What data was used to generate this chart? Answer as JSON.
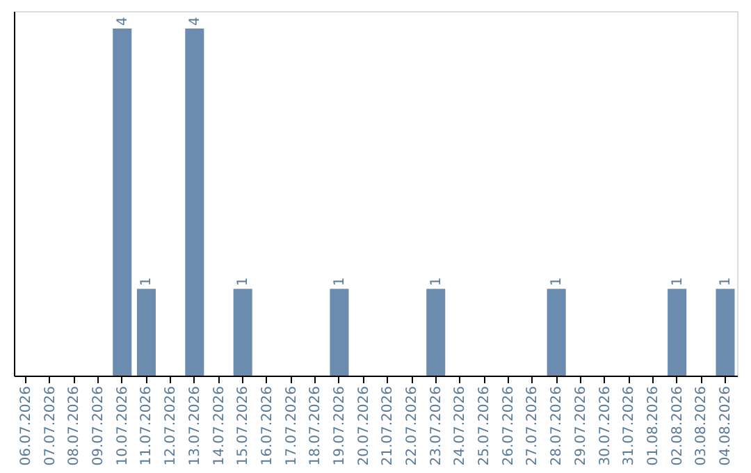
{
  "chart_data": {
    "type": "bar",
    "categories": [
      "06.07.2026",
      "07.07.2026",
      "08.07.2026",
      "09.07.2026",
      "10.07.2026",
      "11.07.2026",
      "12.07.2026",
      "13.07.2026",
      "14.07.2026",
      "15.07.2026",
      "16.07.2026",
      "17.07.2026",
      "18.07.2026",
      "19.07.2026",
      "20.07.2026",
      "21.07.2026",
      "22.07.2026",
      "23.07.2026",
      "24.07.2026",
      "25.07.2026",
      "26.07.2026",
      "27.07.2026",
      "28.07.2026",
      "29.07.2026",
      "30.07.2026",
      "31.07.2026",
      "01.08.2026",
      "02.08.2026",
      "03.08.2026",
      "04.08.2026"
    ],
    "values": [
      0,
      0,
      0,
      0,
      4,
      1,
      0,
      4,
      0,
      1,
      0,
      0,
      0,
      1,
      0,
      0,
      0,
      1,
      0,
      0,
      0,
      0,
      1,
      0,
      0,
      0,
      0,
      1,
      0,
      1
    ],
    "value_labels": [
      null,
      null,
      null,
      null,
      "4",
      "1",
      null,
      "4",
      null,
      "1",
      null,
      null,
      null,
      "1",
      null,
      null,
      null,
      "1",
      null,
      null,
      null,
      null,
      "1",
      null,
      null,
      null,
      null,
      "1",
      null,
      "1"
    ],
    "color": "#6b8cae",
    "ylim": [
      0,
      4.2
    ],
    "grid": false
  }
}
